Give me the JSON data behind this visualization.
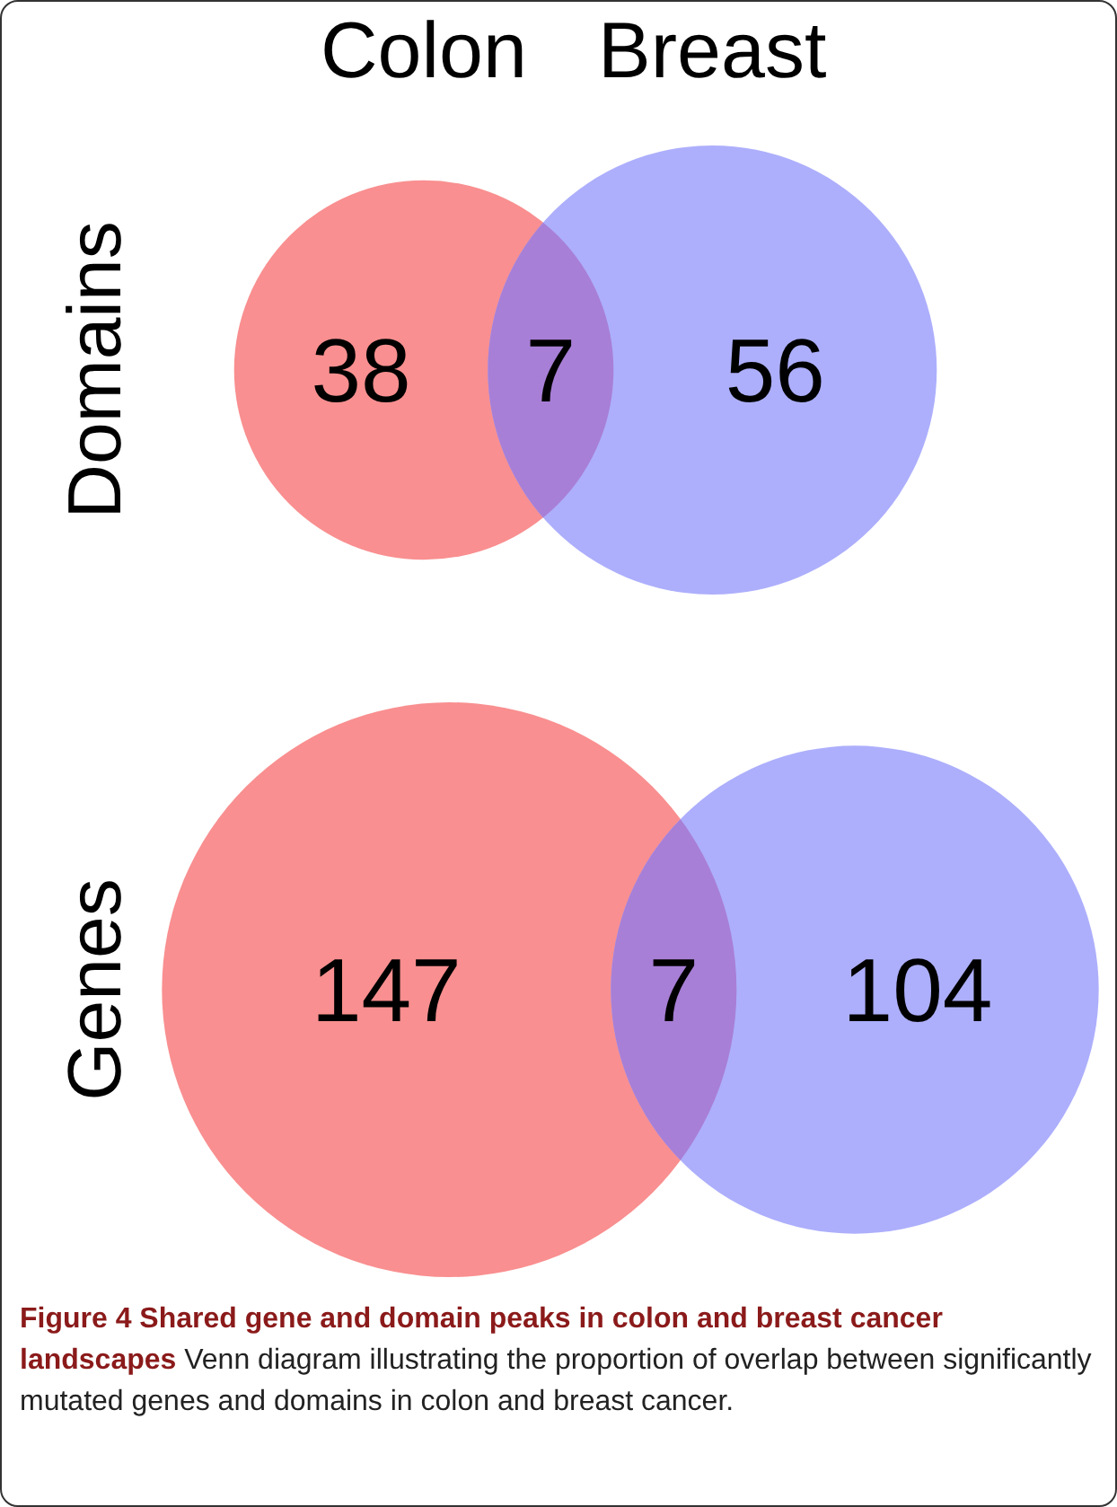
{
  "chart_data": [
    {
      "type": "other",
      "ylabel": "Domains",
      "annotations": [
        "Colon",
        "Breast"
      ],
      "data_labels": true,
      "categories": [
        null,
        null,
        null
      ],
      "values": [
        38,
        7,
        56
      ],
      "colors": [
        "#f98f90",
        "#a87fd6",
        "#adaffc"
      ]
    },
    {
      "type": "other",
      "ylabel": "Genes",
      "data_labels": true,
      "annotations": [
        "Figure 4 Shared gene and domain peaks in colon and breast cancer landscapes",
        "Venn diagram illustrating the proportion of overlap between significantly mutated genes and domains in colon and breast cancer."
      ],
      "categories": [
        null,
        null,
        null
      ],
      "values": [
        147,
        7,
        104
      ],
      "colors": [
        "#f98f90",
        "#a87fd6",
        "#adaffc"
      ]
    }
  ]
}
